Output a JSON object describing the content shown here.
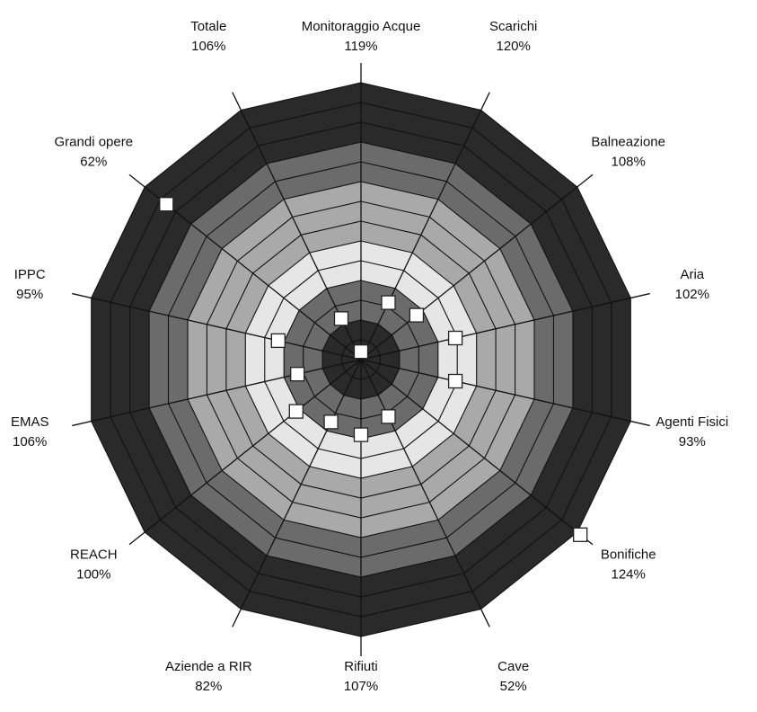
{
  "chart_data": {
    "type": "radar",
    "title": "",
    "scale_rings": 14,
    "band_colors": [
      "#2a2a2a",
      "#6b6b6b",
      "#a9a9a9",
      "#e6e6e6",
      "#6b6b6b",
      "#2a2a2a"
    ],
    "categories": [
      {
        "name": "Monitoraggio Acque",
        "value_label": "119%"
      },
      {
        "name": "Scarichi",
        "value_label": "120%"
      },
      {
        "name": "Balneazione",
        "value_label": "108%"
      },
      {
        "name": "Aria",
        "value_label": "102%"
      },
      {
        "name": "Agenti Fisici",
        "value_label": "93%"
      },
      {
        "name": "Bonifiche",
        "value_label": "124%"
      },
      {
        "name": "Cave",
        "value_label": "52%"
      },
      {
        "name": "Rifiuti",
        "value_label": "107%"
      },
      {
        "name": "Aziende a RIR",
        "value_label": "82%"
      },
      {
        "name": "REACH",
        "value_label": "100%"
      },
      {
        "name": "EMAS",
        "value_label": "106%"
      },
      {
        "name": "IPPC",
        "value_label": "95%"
      },
      {
        "name": "Grandi opere",
        "value_label": "62%"
      },
      {
        "name": "Totale",
        "value_label": "106%"
      }
    ],
    "series": [
      {
        "marker": "square",
        "values": [
          0.4,
          3.2,
          3.6,
          4.9,
          4.9,
          14.2,
          3.2,
          3.8,
          3.5,
          4.2,
          3.3,
          4.3,
          12.6,
          2.3
        ]
      }
    ]
  }
}
